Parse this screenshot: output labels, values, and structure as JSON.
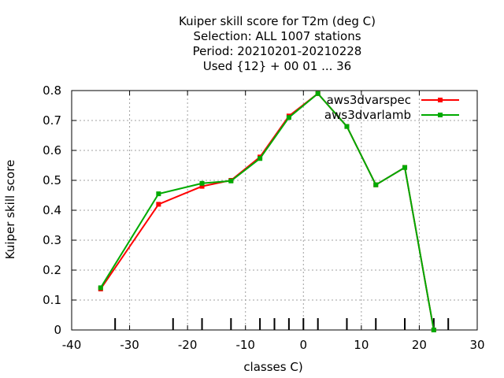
{
  "chart_data": {
    "type": "line",
    "title_lines": [
      "Kuiper skill score  for T2m (deg C)",
      "Selection: ALL   1007 stations",
      "Period: 20210201-20210228",
      "Used {12} + 00 01 ... 36"
    ],
    "xlabel": "classes C)",
    "ylabel": "Kuiper skill score",
    "xlim": [
      -40,
      30
    ],
    "ylim": [
      0,
      0.8
    ],
    "xticks": [
      -40,
      -30,
      -20,
      -10,
      0,
      10,
      20,
      30
    ],
    "yticks": [
      0,
      0.1,
      0.2,
      0.3,
      0.4,
      0.5,
      0.6,
      0.7,
      0.8
    ],
    "ytick_labels": [
      "0",
      "0.1",
      "0.2",
      "0.3",
      "0.4",
      "0.5",
      "0.6",
      "0.7",
      "0.8"
    ],
    "class_marks": [
      -32.5,
      -22.5,
      -17.5,
      -12.5,
      -7.5,
      -5,
      -2.5,
      0,
      2.5,
      7.5,
      12.5,
      17.5,
      22.5,
      25
    ],
    "grid": true,
    "legend_position": "top-right",
    "series": [
      {
        "name": "aws3dvarspec",
        "color": "#ff0000",
        "x": [
          -35,
          -25,
          -17.5,
          -12.5,
          -7.5,
          -2.5,
          2.5,
          7.5,
          12.5,
          17.5,
          22.5
        ],
        "y": [
          0.137,
          0.42,
          0.48,
          0.5,
          0.578,
          0.715,
          0.79,
          0.68,
          0.485,
          0.543,
          0.0
        ]
      },
      {
        "name": "aws3dvarlamb",
        "color": "#00aa00",
        "x": [
          -35,
          -25,
          -17.5,
          -12.5,
          -7.5,
          -2.5,
          2.5,
          7.5,
          12.5,
          17.5,
          22.5
        ],
        "y": [
          0.141,
          0.455,
          0.49,
          0.498,
          0.573,
          0.71,
          0.79,
          0.68,
          0.485,
          0.543,
          0.0
        ]
      }
    ]
  }
}
